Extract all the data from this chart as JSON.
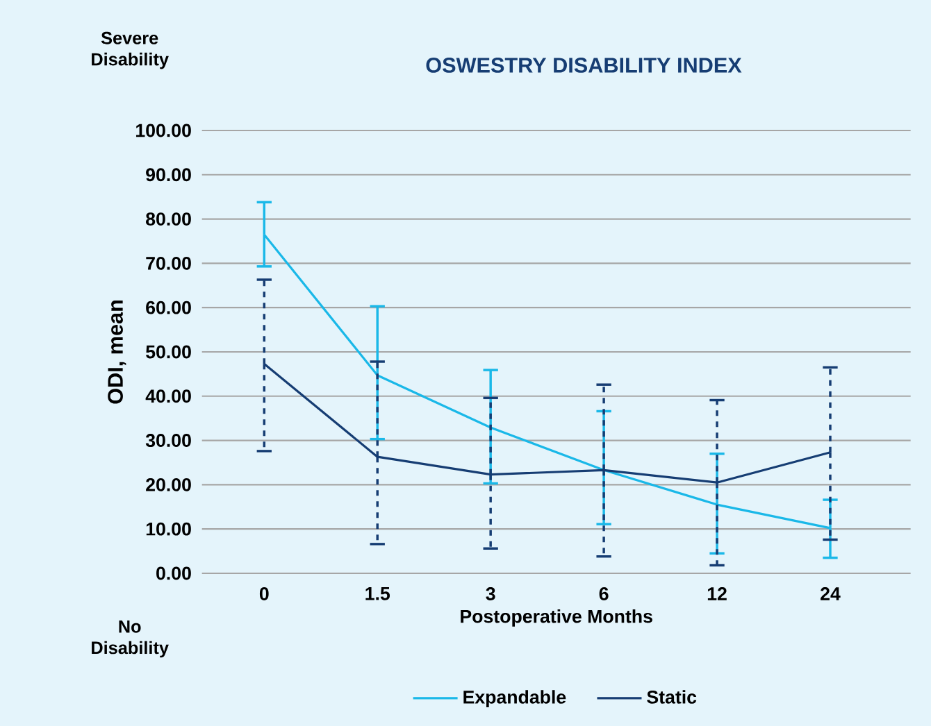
{
  "chart_data": {
    "type": "line",
    "title": "OSWESTRY DISABILITY INDEX",
    "xlabel": "Postoperative Months",
    "ylabel": "ODI, mean",
    "annotations": [
      "Severe Disability",
      "No Disability"
    ],
    "categories": [
      "0",
      "1.5",
      "3",
      "6",
      "12",
      "24"
    ],
    "series": [
      {
        "name": "Expandable",
        "color": "#1ab8e8",
        "values": [
          76.5,
          44.7,
          32.9,
          23.3,
          15.5,
          10.2
        ],
        "errors": [
          [
            69.3,
            83.8
          ],
          [
            30.3,
            60.3
          ],
          [
            20.3,
            45.9
          ],
          [
            11.1,
            36.6
          ],
          [
            4.5,
            27.0
          ],
          [
            3.5,
            16.6
          ]
        ]
      },
      {
        "name": "Static",
        "color": "#163d73",
        "values": [
          47.3,
          26.3,
          22.3,
          23.3,
          20.5,
          27.3
        ],
        "errors": [
          [
            27.6,
            66.3
          ],
          [
            6.6,
            47.8
          ],
          [
            5.6,
            39.6
          ],
          [
            3.8,
            42.6
          ],
          [
            1.8,
            39.1
          ],
          [
            7.6,
            46.5
          ]
        ]
      }
    ],
    "ylim": [
      0,
      100
    ],
    "yticks": [
      {
        "value": 0,
        "label": "0.00"
      },
      {
        "value": 10,
        "label": "10.00"
      },
      {
        "value": 20,
        "label": "20.00"
      },
      {
        "value": 30,
        "label": "30.00"
      },
      {
        "value": 40,
        "label": "40.00"
      },
      {
        "value": 50,
        "label": "50.00"
      },
      {
        "value": 60,
        "label": "60.00"
      },
      {
        "value": 70,
        "label": "70.00"
      },
      {
        "value": 80,
        "label": "80.00"
      },
      {
        "value": 90,
        "label": "90.00"
      },
      {
        "value": 100,
        "label": "100.00"
      }
    ],
    "grid": "y",
    "legend": "bottom",
    "marker": "none",
    "line_style": "solid"
  }
}
